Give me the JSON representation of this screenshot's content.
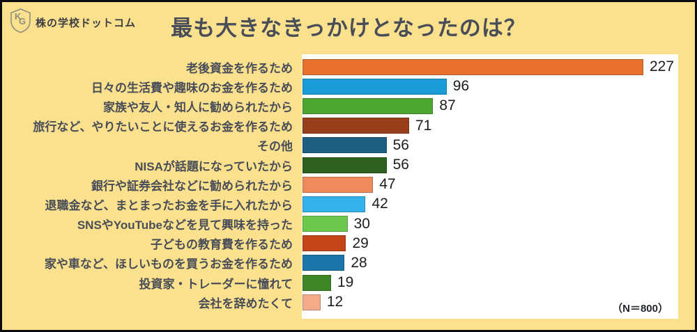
{
  "header": {
    "brand": "株の学校ドットコム",
    "title": "最も大きなきっかけとなったのは？"
  },
  "note": "（N＝800）",
  "colors": {
    "background": "#FBE08E",
    "panel": "#FFFFFF",
    "title_text": "#484D57",
    "label_text": "#484D57",
    "value_text": "#1D1D1D",
    "border": "#0B0B0B",
    "logo_outline": "#8E8E80"
  },
  "chart_data": {
    "type": "bar",
    "orientation": "horizontal",
    "title": "最も大きなきっかけとなったのは？",
    "categories": [
      "老後資金を作るため",
      "日々の生活費や趣味のお金を作るため",
      "家族や友人・知人に勧められたから",
      "旅行など、やりたいことに使えるお金を作るため",
      "その他",
      "NISAが話題になっていたから",
      "銀行や証券会社などに勧められたから",
      "退職金など、まとまったお金を手に入れたから",
      "SNSやYouTubeなどを見て興味を持った",
      "子どもの教育費を作るため",
      "家や車など、ほしいものを買うお金を作るため",
      "投資家・トレーダーに憧れて",
      "会社を辞めたくて"
    ],
    "values": [
      227,
      96,
      87,
      71,
      56,
      56,
      47,
      42,
      30,
      29,
      28,
      19,
      12
    ],
    "bar_colors": [
      "#E8722D",
      "#1B9BD8",
      "#4DA62F",
      "#973E1B",
      "#1E5F82",
      "#2D601E",
      "#EE8A5B",
      "#35B2EC",
      "#6BC84C",
      "#C34418",
      "#1C76AA",
      "#3E8528",
      "#F4AB89"
    ],
    "xlim": [
      0,
      250
    ],
    "value_labels_shown": true,
    "grid": false,
    "legend": "none",
    "sample_size_note": "（N＝800）",
    "max_value_for_scale": 227
  }
}
